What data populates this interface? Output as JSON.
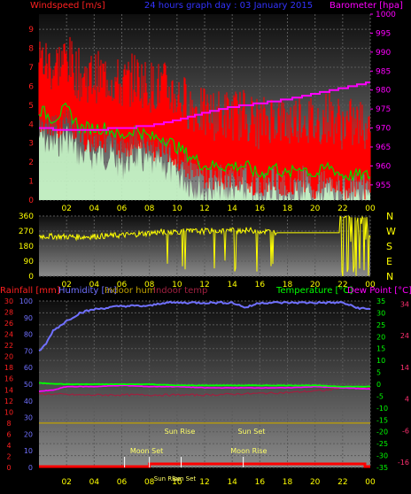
{
  "chart_data": [
    {
      "type": "line",
      "title": "24 hours graph day : 03 January 2015",
      "xlabel": "",
      "x_ticks": [
        "02",
        "04",
        "06",
        "08",
        "10",
        "12",
        "14",
        "16",
        "18",
        "20",
        "22",
        "00"
      ],
      "y_left": {
        "label": "Windspeed [m/s]",
        "ticks": [
          "0",
          "1",
          "2",
          "3",
          "4",
          "5",
          "6",
          "7",
          "8",
          "9"
        ],
        "range": [
          0,
          9.8
        ]
      },
      "y_right": {
        "label": "Barometer [hpa]",
        "ticks": [
          "955",
          "960",
          "965",
          "970",
          "975",
          "980",
          "985",
          "990",
          "995",
          "1000"
        ],
        "range": [
          951,
          1000
        ]
      },
      "series": [
        {
          "name": "Windspeed [m/s]",
          "color": "#ff0000",
          "x_hours": [
            0,
            1,
            2,
            3,
            4,
            5,
            6,
            7,
            8,
            9,
            10,
            11,
            12,
            13,
            14,
            15,
            16,
            17,
            18,
            19,
            20,
            21,
            22,
            23,
            24
          ],
          "values": [
            6.5,
            6.0,
            6.5,
            5.5,
            5.5,
            5.5,
            5.0,
            5.5,
            5.0,
            5.0,
            4.5,
            4.0,
            3.5,
            3.5,
            3.5,
            3.5,
            3.0,
            3.5,
            3.0,
            3.5,
            3.0,
            3.5,
            3.0,
            3.0,
            3.0
          ]
        },
        {
          "name": "Barometer [hpa]",
          "color": "#ff00ff",
          "x_hours": [
            0,
            2,
            4,
            6,
            8,
            10,
            12,
            14,
            16,
            18,
            20,
            22,
            24
          ],
          "values": [
            970,
            969.5,
            969.5,
            970,
            970.5,
            972,
            974,
            975.5,
            976.5,
            977.5,
            979,
            980.5,
            982
          ]
        }
      ]
    },
    {
      "type": "line",
      "y_left": {
        "ticks": [
          "0",
          "90",
          "180",
          "270",
          "360"
        ],
        "range": [
          0,
          360
        ]
      },
      "y_right_labels": [
        "N",
        "W",
        "S",
        "E",
        "N"
      ],
      "x_ticks": [
        "02",
        "04",
        "06",
        "08",
        "10",
        "12",
        "14",
        "16",
        "18",
        "20",
        "22",
        "00"
      ],
      "series": [
        {
          "name": "Wind direction",
          "color": "#ffff00",
          "x_hours": [
            0,
            3,
            6,
            9,
            12,
            15,
            18,
            20,
            22,
            24
          ],
          "values": [
            240,
            235,
            245,
            265,
            270,
            275,
            260,
            260,
            270,
            350
          ]
        }
      ]
    },
    {
      "type": "line",
      "x_ticks": [
        "02",
        "04",
        "06",
        "08",
        "10",
        "12",
        "14",
        "16",
        "18",
        "20",
        "22",
        "00"
      ],
      "y_left_labels": [
        "Rainfall [mm]",
        "Humidity [%]",
        "Indoor hum",
        "Indoor temp"
      ],
      "y_right_labels": [
        "Temperature [°C]",
        "Dew Point [°C]"
      ],
      "y_left_outer": {
        "ticks": [
          "0",
          "2",
          "4",
          "6",
          "8",
          "10",
          "12",
          "14",
          "16",
          "18",
          "20",
          "22",
          "24",
          "26",
          "28",
          "30"
        ],
        "range": [
          0,
          30
        ]
      },
      "y_left_inner": {
        "ticks": [
          "0",
          "10",
          "20",
          "30",
          "40",
          "50",
          "60",
          "70",
          "80",
          "90",
          "100"
        ],
        "range": [
          0,
          100
        ]
      },
      "y_right_inner": {
        "ticks": [
          "-35",
          "-30",
          "-25",
          "-20",
          "-15",
          "-10",
          "-5",
          "0",
          "5",
          "10",
          "15",
          "20",
          "25",
          "30",
          "35"
        ],
        "range": [
          -35,
          35
        ]
      },
      "y_right_outer": {
        "ticks": [
          "-16",
          "-6",
          "4",
          "14",
          "24",
          "34"
        ],
        "range": [
          -16,
          34
        ]
      },
      "series": [
        {
          "name": "Humidity [%]",
          "color": "#7070ff",
          "x_hours": [
            0,
            0.5,
            1,
            2,
            3,
            4,
            6,
            8,
            9,
            10,
            12,
            14,
            15,
            16,
            18,
            20,
            22,
            23,
            24
          ],
          "values": [
            70,
            74,
            82,
            88,
            93,
            95,
            97,
            97,
            99,
            99,
            99,
            99,
            96,
            99,
            99,
            99,
            99,
            96,
            95
          ]
        },
        {
          "name": "Temperature [°C]",
          "color": "#00ff00",
          "x_hours": [
            0,
            2,
            4,
            6,
            8,
            10,
            12,
            14,
            16,
            18,
            20,
            22,
            24
          ],
          "values": [
            0.5,
            0,
            0,
            0,
            0,
            -0.5,
            -0.5,
            -0.5,
            -0.5,
            -0.5,
            -0.5,
            -1,
            -1
          ]
        },
        {
          "name": "Dew Point [°C]",
          "color": "#ff00ff",
          "x_hours": [
            0,
            1,
            2,
            4,
            6,
            8,
            10,
            12,
            14,
            16,
            18,
            20,
            22,
            24
          ],
          "values": [
            -3,
            -2.5,
            -1,
            -1,
            -0.5,
            -1,
            -1,
            -1.5,
            -1.5,
            -1.5,
            -1.5,
            -1,
            -1.5,
            -2
          ]
        },
        {
          "name": "Indoor temp",
          "color": "#a02040",
          "x_hours": [
            0,
            3,
            6,
            9,
            12,
            15,
            18,
            21,
            22,
            24
          ],
          "values": [
            -4,
            -4.5,
            -4.5,
            -4.5,
            -4.5,
            -4,
            -3.5,
            -2.5,
            -1,
            -1.5
          ]
        },
        {
          "name": "Indoor hum",
          "color": "#c0a000",
          "x_hours": [
            0,
            24
          ],
          "values": [
            8,
            8
          ]
        },
        {
          "name": "Rainfall [mm]",
          "color": "#ff0000",
          "x_hours": [
            0,
            7.5,
            8,
            24
          ],
          "values": [
            0,
            0,
            0.8,
            0.8
          ]
        }
      ],
      "annotations": [
        "Sun Rise",
        "Sun Set",
        "Moon Set",
        "Moon Rise",
        "Sun Rise",
        "Sun Set"
      ]
    }
  ],
  "colors": {
    "windspeed": "#ff0000",
    "gust_fill": "#ccffcc",
    "avg_wind": "#00dd00",
    "barometer": "#ff00ff",
    "direction": "#ffff00",
    "title": "#3333ff",
    "axis_yellow": "#ffff00",
    "humidity": "#7070ff",
    "temperature": "#00ff00",
    "dewpoint": "#ff00ff",
    "indoor_temp": "#a02040",
    "indoor_hum": "#c0a000"
  }
}
